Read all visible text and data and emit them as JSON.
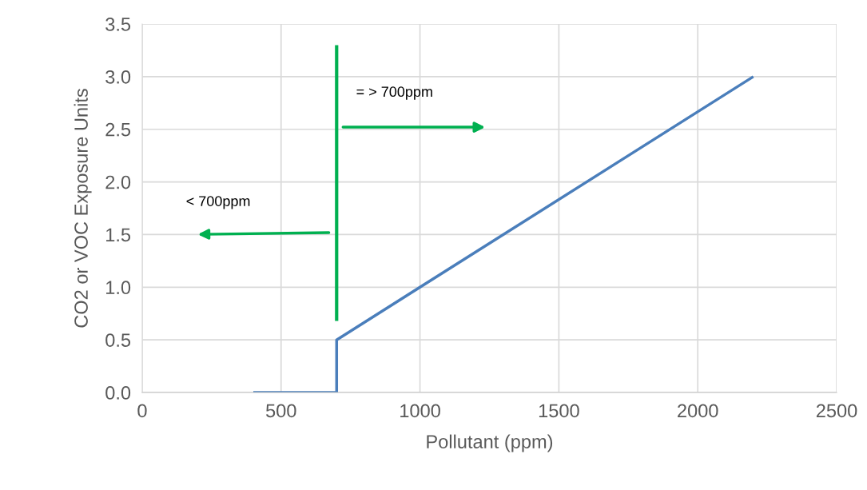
{
  "chart_data": {
    "type": "line",
    "xlabel": "Pollutant (ppm)",
    "ylabel": "CO2 or VOC Exposure Units",
    "xlim": [
      0,
      2500
    ],
    "xticks": [
      0,
      500,
      1000,
      1500,
      2000,
      2500
    ],
    "ylim": [
      0,
      3.5
    ],
    "yticks": [
      {
        "value": 0,
        "label": "0.0"
      },
      {
        "value": 0.5,
        "label": "0.5"
      },
      {
        "value": 1,
        "label": "1.0"
      },
      {
        "value": 1.5,
        "label": "1.5"
      },
      {
        "value": 2,
        "label": "2.0"
      },
      {
        "value": 2.5,
        "label": "2.5"
      },
      {
        "value": 3,
        "label": "3.0"
      },
      {
        "value": 3.5,
        "label": "3.5"
      }
    ],
    "grid": true,
    "legend": false,
    "series": [
      {
        "color": "#4a7ebb",
        "x": [
          400,
          700,
          700,
          2200
        ],
        "values": [
          0,
          0,
          0.5,
          3.0
        ]
      },
      {
        "color": "#00b050",
        "x": [
          700,
          700
        ],
        "values": [
          0.68,
          3.3
        ]
      }
    ],
    "annotations": [
      "< 700ppm",
      "= > 700ppm"
    ]
  }
}
